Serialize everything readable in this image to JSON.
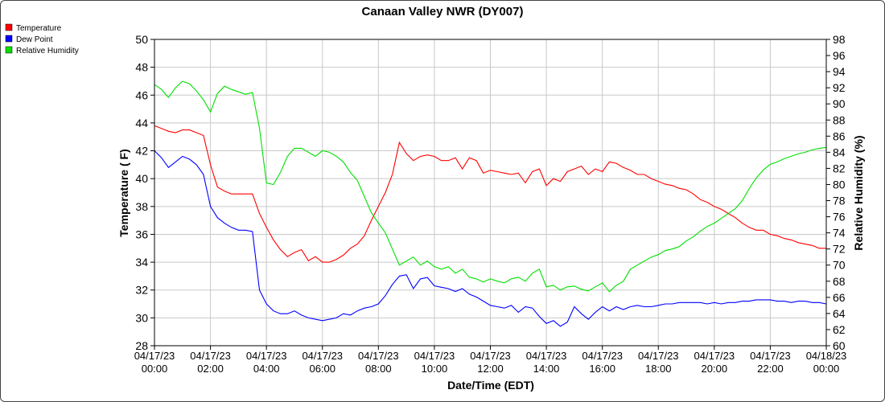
{
  "chart_data": {
    "type": "line",
    "title": "Canaan Valley NWR (DY007)",
    "xlabel": "Date/Time (EDT)",
    "ylabel": "Temperature ( F)",
    "y2label": "Relative Humidity (%)",
    "ylim": [
      28,
      50
    ],
    "y2lim": [
      60,
      98
    ],
    "yticks": [
      "28",
      "30",
      "32",
      "34",
      "36",
      "38",
      "40",
      "42",
      "44",
      "46",
      "48",
      "50"
    ],
    "y2ticks": [
      "60",
      "62",
      "64",
      "66",
      "68",
      "70",
      "72",
      "74",
      "76",
      "78",
      "80",
      "82",
      "84",
      "86",
      "88",
      "90",
      "92",
      "94",
      "96",
      "98"
    ],
    "xlim_hours": [
      0,
      24
    ],
    "xticks": [
      {
        "date": "04/17/23",
        "time": "00:00"
      },
      {
        "date": "04/17/23",
        "time": "02:00"
      },
      {
        "date": "04/17/23",
        "time": "04:00"
      },
      {
        "date": "04/17/23",
        "time": "06:00"
      },
      {
        "date": "04/17/23",
        "time": "08:00"
      },
      {
        "date": "04/17/23",
        "time": "10:00"
      },
      {
        "date": "04/17/23",
        "time": "12:00"
      },
      {
        "date": "04/17/23",
        "time": "14:00"
      },
      {
        "date": "04/17/23",
        "time": "16:00"
      },
      {
        "date": "04/17/23",
        "time": "18:00"
      },
      {
        "date": "04/17/23",
        "time": "20:00"
      },
      {
        "date": "04/17/23",
        "time": "22:00"
      },
      {
        "date": "04/18/23",
        "time": "00:00"
      }
    ],
    "grid": true,
    "legend_position": "top-left",
    "series": [
      {
        "name": "Temperature",
        "axis": "left",
        "color": "#ff0000",
        "points": [
          [
            0,
            43.8
          ],
          [
            0.25,
            43.6
          ],
          [
            0.5,
            43.4
          ],
          [
            0.75,
            43.3
          ],
          [
            1,
            43.5
          ],
          [
            1.25,
            43.5
          ],
          [
            1.5,
            43.3
          ],
          [
            1.75,
            43.1
          ],
          [
            2,
            41.0
          ],
          [
            2.25,
            39.4
          ],
          [
            2.5,
            39.1
          ],
          [
            2.75,
            38.9
          ],
          [
            3,
            38.9
          ],
          [
            3.25,
            38.9
          ],
          [
            3.5,
            38.9
          ],
          [
            3.75,
            37.5
          ],
          [
            4,
            36.5
          ],
          [
            4.25,
            35.6
          ],
          [
            4.5,
            34.9
          ],
          [
            4.75,
            34.4
          ],
          [
            5,
            34.7
          ],
          [
            5.25,
            34.9
          ],
          [
            5.5,
            34.1
          ],
          [
            5.75,
            34.4
          ],
          [
            6,
            34.0
          ],
          [
            6.25,
            34.0
          ],
          [
            6.5,
            34.2
          ],
          [
            6.75,
            34.5
          ],
          [
            7,
            35.0
          ],
          [
            7.25,
            35.3
          ],
          [
            7.5,
            35.9
          ],
          [
            7.75,
            37.0
          ],
          [
            8,
            38.0
          ],
          [
            8.25,
            39.0
          ],
          [
            8.5,
            40.3
          ],
          [
            8.75,
            42.6
          ],
          [
            9,
            41.8
          ],
          [
            9.25,
            41.3
          ],
          [
            9.5,
            41.6
          ],
          [
            9.75,
            41.7
          ],
          [
            10,
            41.6
          ],
          [
            10.25,
            41.3
          ],
          [
            10.5,
            41.3
          ],
          [
            10.75,
            41.5
          ],
          [
            11,
            40.7
          ],
          [
            11.25,
            41.5
          ],
          [
            11.5,
            41.3
          ],
          [
            11.75,
            40.4
          ],
          [
            12,
            40.6
          ],
          [
            12.25,
            40.5
          ],
          [
            12.5,
            40.4
          ],
          [
            12.75,
            40.3
          ],
          [
            13,
            40.4
          ],
          [
            13.25,
            39.7
          ],
          [
            13.5,
            40.5
          ],
          [
            13.75,
            40.7
          ],
          [
            14,
            39.5
          ],
          [
            14.25,
            40.0
          ],
          [
            14.5,
            39.8
          ],
          [
            14.75,
            40.5
          ],
          [
            15,
            40.7
          ],
          [
            15.25,
            40.9
          ],
          [
            15.5,
            40.3
          ],
          [
            15.75,
            40.7
          ],
          [
            16,
            40.5
          ],
          [
            16.25,
            41.2
          ],
          [
            16.5,
            41.1
          ],
          [
            16.75,
            40.8
          ],
          [
            17,
            40.6
          ],
          [
            17.25,
            40.3
          ],
          [
            17.5,
            40.3
          ],
          [
            17.75,
            40.0
          ],
          [
            18,
            39.8
          ],
          [
            18.25,
            39.6
          ],
          [
            18.5,
            39.5
          ],
          [
            18.75,
            39.3
          ],
          [
            19,
            39.2
          ],
          [
            19.25,
            38.9
          ],
          [
            19.5,
            38.5
          ],
          [
            19.75,
            38.3
          ],
          [
            20,
            38.0
          ],
          [
            20.25,
            37.8
          ],
          [
            20.5,
            37.5
          ],
          [
            20.75,
            37.2
          ],
          [
            21,
            36.8
          ],
          [
            21.25,
            36.5
          ],
          [
            21.5,
            36.3
          ],
          [
            21.75,
            36.3
          ],
          [
            22,
            36.0
          ],
          [
            22.25,
            35.9
          ],
          [
            22.5,
            35.7
          ],
          [
            22.75,
            35.6
          ],
          [
            23,
            35.4
          ],
          [
            23.25,
            35.3
          ],
          [
            23.5,
            35.2
          ],
          [
            23.75,
            35.0
          ],
          [
            24,
            35.0
          ]
        ]
      },
      {
        "name": "Dew Point",
        "axis": "left",
        "color": "#0000ff",
        "points": [
          [
            0,
            42.0
          ],
          [
            0.25,
            41.5
          ],
          [
            0.5,
            40.8
          ],
          [
            0.75,
            41.2
          ],
          [
            1,
            41.6
          ],
          [
            1.25,
            41.4
          ],
          [
            1.5,
            41.0
          ],
          [
            1.75,
            40.3
          ],
          [
            2,
            38.0
          ],
          [
            2.25,
            37.2
          ],
          [
            2.5,
            36.8
          ],
          [
            2.75,
            36.5
          ],
          [
            3,
            36.3
          ],
          [
            3.25,
            36.3
          ],
          [
            3.5,
            36.2
          ],
          [
            3.75,
            32.0
          ],
          [
            4,
            31.0
          ],
          [
            4.25,
            30.5
          ],
          [
            4.5,
            30.3
          ],
          [
            4.75,
            30.3
          ],
          [
            5,
            30.5
          ],
          [
            5.25,
            30.2
          ],
          [
            5.5,
            30.0
          ],
          [
            5.75,
            29.9
          ],
          [
            6,
            29.8
          ],
          [
            6.25,
            29.9
          ],
          [
            6.5,
            30.0
          ],
          [
            6.75,
            30.3
          ],
          [
            7,
            30.2
          ],
          [
            7.25,
            30.5
          ],
          [
            7.5,
            30.7
          ],
          [
            7.75,
            30.8
          ],
          [
            8,
            31.0
          ],
          [
            8.25,
            31.6
          ],
          [
            8.5,
            32.4
          ],
          [
            8.75,
            33.0
          ],
          [
            9,
            33.1
          ],
          [
            9.25,
            32.1
          ],
          [
            9.5,
            32.8
          ],
          [
            9.75,
            32.9
          ],
          [
            10,
            32.3
          ],
          [
            10.25,
            32.2
          ],
          [
            10.5,
            32.1
          ],
          [
            10.75,
            31.9
          ],
          [
            11,
            32.1
          ],
          [
            11.25,
            31.7
          ],
          [
            11.5,
            31.5
          ],
          [
            11.75,
            31.2
          ],
          [
            12,
            30.9
          ],
          [
            12.25,
            30.8
          ],
          [
            12.5,
            30.7
          ],
          [
            12.75,
            30.9
          ],
          [
            13,
            30.4
          ],
          [
            13.25,
            30.8
          ],
          [
            13.5,
            30.7
          ],
          [
            13.75,
            30.1
          ],
          [
            14,
            29.6
          ],
          [
            14.25,
            29.8
          ],
          [
            14.5,
            29.4
          ],
          [
            14.75,
            29.7
          ],
          [
            15,
            30.8
          ],
          [
            15.25,
            30.3
          ],
          [
            15.5,
            29.9
          ],
          [
            15.75,
            30.4
          ],
          [
            16,
            30.8
          ],
          [
            16.25,
            30.5
          ],
          [
            16.5,
            30.8
          ],
          [
            16.75,
            30.6
          ],
          [
            17,
            30.8
          ],
          [
            17.25,
            30.9
          ],
          [
            17.5,
            30.8
          ],
          [
            17.75,
            30.8
          ],
          [
            18,
            30.9
          ],
          [
            18.25,
            31.0
          ],
          [
            18.5,
            31.0
          ],
          [
            18.75,
            31.1
          ],
          [
            19,
            31.1
          ],
          [
            19.25,
            31.1
          ],
          [
            19.5,
            31.1
          ],
          [
            19.75,
            31.0
          ],
          [
            20,
            31.1
          ],
          [
            20.25,
            31.0
          ],
          [
            20.5,
            31.1
          ],
          [
            20.75,
            31.1
          ],
          [
            21,
            31.2
          ],
          [
            21.25,
            31.2
          ],
          [
            21.5,
            31.3
          ],
          [
            21.75,
            31.3
          ],
          [
            22,
            31.3
          ],
          [
            22.25,
            31.2
          ],
          [
            22.5,
            31.2
          ],
          [
            22.75,
            31.1
          ],
          [
            23,
            31.2
          ],
          [
            23.25,
            31.2
          ],
          [
            23.5,
            31.1
          ],
          [
            23.75,
            31.1
          ],
          [
            24,
            31.0
          ]
        ]
      },
      {
        "name": "Relative Humidity",
        "axis": "right",
        "color": "#00e000",
        "points": [
          [
            0,
            92.4
          ],
          [
            0.25,
            91.8
          ],
          [
            0.5,
            90.8
          ],
          [
            0.75,
            92.0
          ],
          [
            1,
            92.8
          ],
          [
            1.25,
            92.5
          ],
          [
            1.5,
            91.6
          ],
          [
            1.75,
            90.5
          ],
          [
            2,
            89.0
          ],
          [
            2.25,
            91.3
          ],
          [
            2.5,
            92.2
          ],
          [
            2.75,
            91.8
          ],
          [
            3,
            91.5
          ],
          [
            3.25,
            91.2
          ],
          [
            3.5,
            91.4
          ],
          [
            3.75,
            87.0
          ],
          [
            4,
            80.2
          ],
          [
            4.25,
            80.0
          ],
          [
            4.5,
            81.5
          ],
          [
            4.75,
            83.5
          ],
          [
            5,
            84.5
          ],
          [
            5.25,
            84.5
          ],
          [
            5.5,
            84.0
          ],
          [
            5.75,
            83.5
          ],
          [
            6,
            84.2
          ],
          [
            6.25,
            84.0
          ],
          [
            6.5,
            83.5
          ],
          [
            6.75,
            82.8
          ],
          [
            7,
            81.5
          ],
          [
            7.25,
            80.5
          ],
          [
            7.5,
            78.5
          ],
          [
            7.75,
            76.5
          ],
          [
            8,
            75.2
          ],
          [
            8.25,
            74.0
          ],
          [
            8.5,
            72.0
          ],
          [
            8.75,
            70.0
          ],
          [
            9,
            70.5
          ],
          [
            9.25,
            71.0
          ],
          [
            9.5,
            70.0
          ],
          [
            9.75,
            70.5
          ],
          [
            10,
            69.8
          ],
          [
            10.25,
            69.5
          ],
          [
            10.5,
            69.8
          ],
          [
            10.75,
            69.0
          ],
          [
            11,
            69.5
          ],
          [
            11.25,
            68.5
          ],
          [
            11.5,
            68.3
          ],
          [
            11.75,
            67.9
          ],
          [
            12,
            68.3
          ],
          [
            12.25,
            68.0
          ],
          [
            12.5,
            67.8
          ],
          [
            12.75,
            68.3
          ],
          [
            13,
            68.5
          ],
          [
            13.25,
            68.0
          ],
          [
            13.5,
            69.0
          ],
          [
            13.75,
            69.5
          ],
          [
            14,
            67.3
          ],
          [
            14.25,
            67.5
          ],
          [
            14.5,
            66.9
          ],
          [
            14.75,
            67.3
          ],
          [
            15,
            67.4
          ],
          [
            15.25,
            67.0
          ],
          [
            15.5,
            66.8
          ],
          [
            15.75,
            67.3
          ],
          [
            16,
            67.8
          ],
          [
            16.25,
            66.7
          ],
          [
            16.5,
            67.5
          ],
          [
            16.75,
            68.0
          ],
          [
            17,
            69.5
          ],
          [
            17.25,
            70.0
          ],
          [
            17.5,
            70.5
          ],
          [
            17.75,
            71.0
          ],
          [
            18,
            71.3
          ],
          [
            18.25,
            71.8
          ],
          [
            18.5,
            72.0
          ],
          [
            18.75,
            72.3
          ],
          [
            19,
            73.0
          ],
          [
            19.25,
            73.5
          ],
          [
            19.5,
            74.2
          ],
          [
            19.75,
            74.8
          ],
          [
            20,
            75.2
          ],
          [
            20.25,
            75.8
          ],
          [
            20.5,
            76.4
          ],
          [
            20.75,
            77.0
          ],
          [
            21,
            78.0
          ],
          [
            21.25,
            79.5
          ],
          [
            21.5,
            80.8
          ],
          [
            21.75,
            81.8
          ],
          [
            22,
            82.5
          ],
          [
            22.25,
            82.8
          ],
          [
            22.5,
            83.2
          ],
          [
            22.75,
            83.5
          ],
          [
            23,
            83.8
          ],
          [
            23.25,
            84.0
          ],
          [
            23.5,
            84.3
          ],
          [
            23.75,
            84.5
          ],
          [
            24,
            84.6
          ]
        ]
      }
    ]
  }
}
